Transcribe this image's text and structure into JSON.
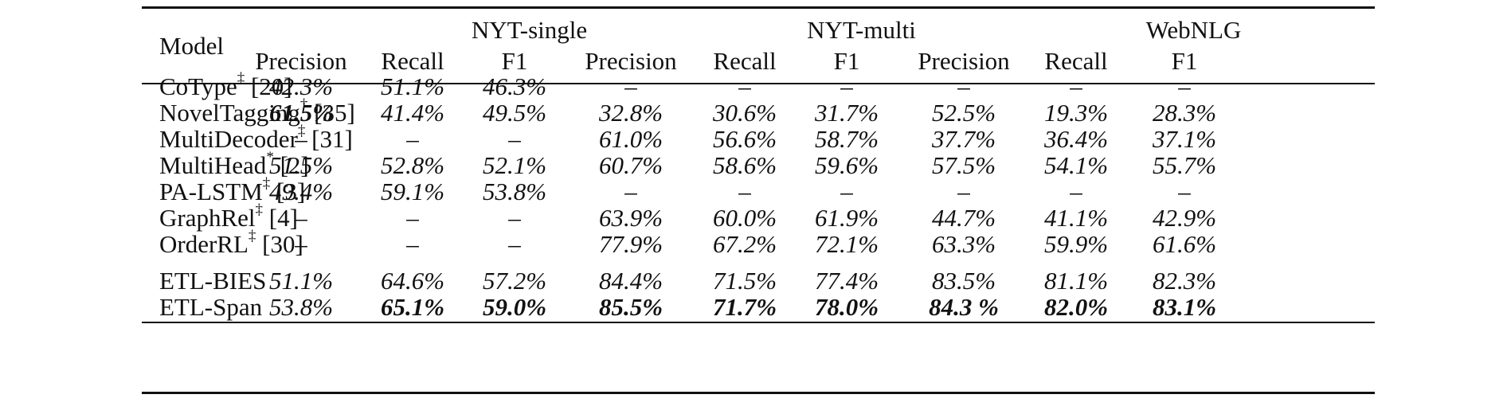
{
  "table": {
    "header": {
      "model_label": "Model",
      "groups": [
        "NYT-single",
        "NYT-multi",
        "WebNLG"
      ],
      "subcols": [
        "Precision",
        "Recall",
        "F1",
        "Precision",
        "Recall",
        "F1",
        "Precision",
        "Recall",
        "F1"
      ]
    },
    "baselines": [
      {
        "name": "CoType",
        "mark": "‡",
        "ref": "[20]",
        "cells": [
          "42.3%",
          "51.1%",
          "46.3%",
          "–",
          "–",
          "–",
          "–",
          "–",
          "–"
        ],
        "bold": []
      },
      {
        "name": "NovelTagging",
        "mark": "†",
        "ref": "[35]",
        "cells": [
          "61.5%",
          "41.4%",
          "49.5%",
          "32.8%",
          "30.6%",
          "31.7%",
          "52.5%",
          "19.3%",
          "28.3%"
        ],
        "bold": [
          0
        ]
      },
      {
        "name": "MultiDecoder",
        "mark": "‡",
        "ref": "[31]",
        "cells": [
          "–",
          "–",
          "–",
          "61.0%",
          "56.6%",
          "58.7%",
          "37.7%",
          "36.4%",
          "37.1%"
        ],
        "bold": []
      },
      {
        "name": "MultiHead",
        "mark": "*",
        "ref": "[2]",
        "cells": [
          "51.5%",
          "52.8%",
          "52.1%",
          "60.7%",
          "58.6%",
          "59.6%",
          "57.5%",
          "54.1%",
          "55.7%"
        ],
        "bold": []
      },
      {
        "name": "PA-LSTM",
        "mark": "‡",
        "ref": "[3]",
        "cells": [
          "49.4%",
          "59.1%",
          "53.8%",
          "–",
          "–",
          "–",
          "–",
          "–",
          "–"
        ],
        "bold": []
      },
      {
        "name": "GraphRel",
        "mark": "‡",
        "ref": "[4]",
        "cells": [
          "–",
          "–",
          "–",
          "63.9%",
          "60.0%",
          "61.9%",
          "44.7%",
          "41.1%",
          "42.9%"
        ],
        "bold": []
      },
      {
        "name": "OrderRL",
        "mark": "‡",
        "ref": "[30]",
        "cells": [
          "–",
          "–",
          "–",
          "77.9%",
          "67.2%",
          "72.1%",
          "63.3%",
          "59.9%",
          "61.6%"
        ],
        "bold": []
      }
    ],
    "ours": [
      {
        "name": "ETL-BIES",
        "mark": "",
        "ref": "",
        "cells": [
          "51.1%",
          "64.6%",
          "57.2%",
          "84.4%",
          "71.5%",
          "77.4%",
          "83.5%",
          "81.1%",
          "82.3%"
        ],
        "bold": []
      },
      {
        "name": "ETL-Span",
        "mark": "",
        "ref": "",
        "cells": [
          "53.8%",
          "65.1%",
          "59.0%",
          "85.5%",
          "71.7%",
          "78.0%",
          "84.3 %",
          "82.0%",
          "83.1%"
        ],
        "bold": [
          1,
          2,
          3,
          4,
          5,
          6,
          7,
          8
        ]
      }
    ]
  }
}
